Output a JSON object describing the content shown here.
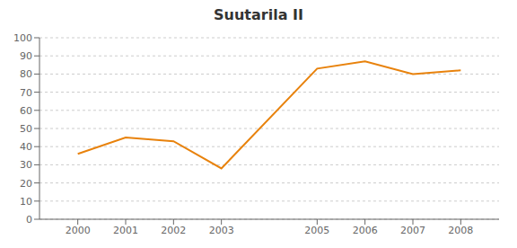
{
  "chart_data": {
    "type": "line",
    "title": "Suutarila II",
    "x": [
      2000,
      2001,
      2002,
      2003,
      2005,
      2006,
      2007,
      2008
    ],
    "values": [
      36,
      45,
      43,
      28,
      83,
      87,
      80,
      82
    ],
    "color": "#E8820C",
    "xlim": [
      1999.2,
      2008.8
    ],
    "xticks": [
      2000,
      2001,
      2002,
      2003,
      2005,
      2006,
      2007,
      2008
    ],
    "ylim": [
      0,
      100
    ],
    "yticks": [
      0,
      10,
      20,
      30,
      40,
      50,
      60,
      70,
      80,
      90,
      100
    ],
    "grid": "y"
  }
}
